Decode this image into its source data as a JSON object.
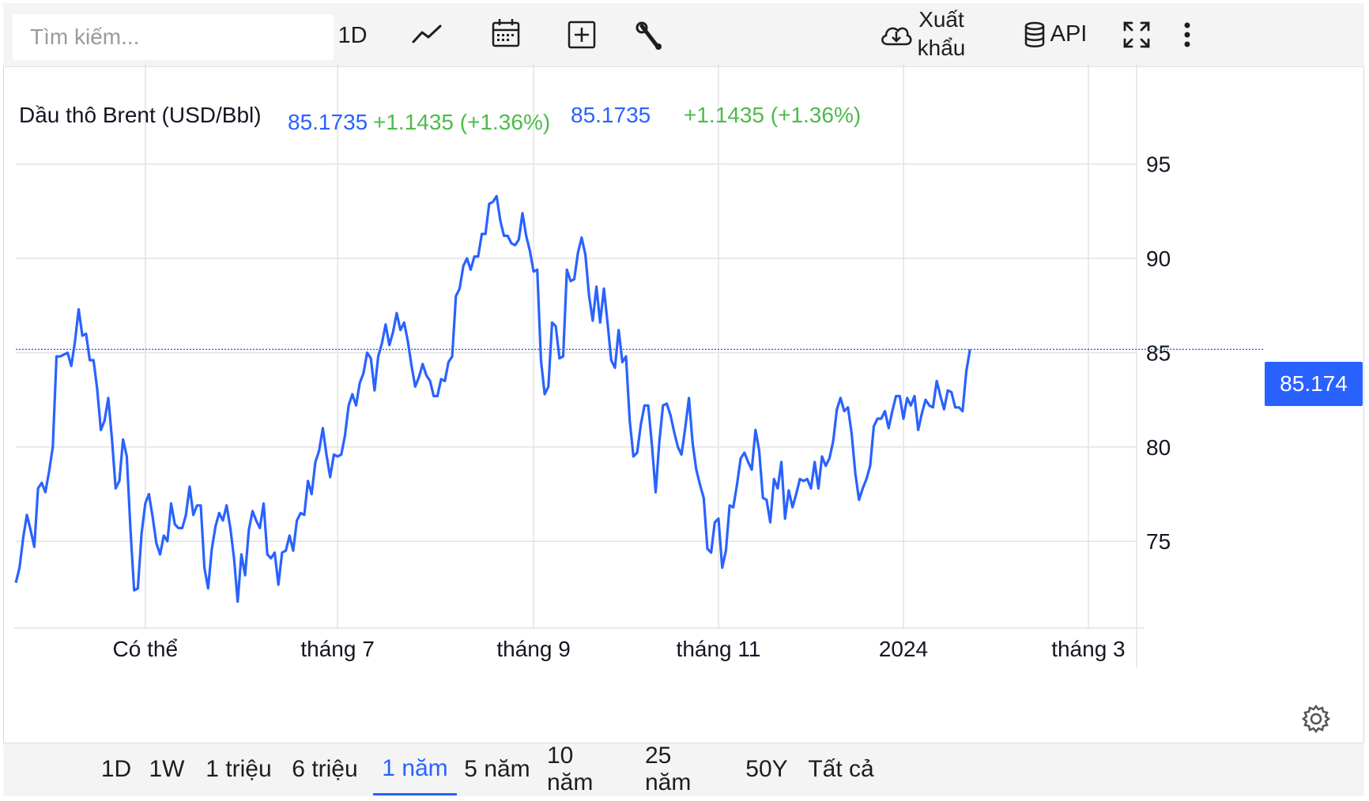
{
  "toolbar": {
    "search_placeholder": "Tìm kiếm...",
    "interval_label": "1D",
    "export_line1": "Xuất",
    "export_line2": "khẩu",
    "api_label": "API",
    "icons": [
      "line-chart-icon",
      "calendar-icon",
      "add-indicator-icon",
      "wrench-icon",
      "cloud-download-icon",
      "database-icon",
      "fullscreen-icon",
      "more-vertical-icon"
    ]
  },
  "legend": {
    "symbol": "Dầu thô Brent (USD/Bbl)",
    "price_a": "85.1735",
    "change_a": "+1.1435 (+1.36%)",
    "price_b": "85.1735",
    "change_b": "+1.1435 (+1.36%)"
  },
  "price_tag": "85.174",
  "colors": {
    "line": "#2962ff",
    "positive": "#4cbb4a",
    "price": "#2962ff"
  },
  "ranges": [
    "1D",
    "1W",
    "1 triệu",
    "6 triệu",
    "1 năm",
    "5 năm",
    "10 năm",
    "25 năm",
    "50Y",
    "Tất cả"
  ],
  "active_range": "1 năm",
  "chart_data": {
    "type": "line",
    "title": "Dầu thô Brent (USD/Bbl)",
    "xlabel": "",
    "ylabel": "",
    "ylim": [
      70.4,
      97
    ],
    "xlim": [
      0,
      296
    ],
    "y_ticks": [
      75,
      80,
      85,
      90,
      95
    ],
    "x_ticks": [
      {
        "label": "Có thể",
        "x": 35
      },
      {
        "label": "tháng 7",
        "x": 87
      },
      {
        "label": "tháng 9",
        "x": 140
      },
      {
        "label": "tháng 11",
        "x": 190
      },
      {
        "label": "2024",
        "x": 240
      },
      {
        "label": "tháng 3",
        "x": 290
      }
    ],
    "last_value": 85.174,
    "grid": true,
    "series": [
      {
        "values": [
          72.8,
          73.6,
          75.2,
          76.4,
          75.6,
          74.7,
          77.8,
          78.1,
          77.6,
          78.7,
          80.0,
          84.8,
          84.8,
          84.9,
          85.0,
          84.3,
          85.6,
          87.3,
          85.9,
          86.0,
          84.6,
          84.6,
          83.1,
          80.9,
          81.4,
          82.6,
          80.4,
          77.8,
          78.2,
          80.4,
          79.5,
          75.6,
          72.4,
          72.5,
          75.4,
          77.0,
          77.5,
          76.3,
          74.9,
          74.3,
          75.3,
          75.0,
          77.0,
          75.9,
          75.7,
          75.7,
          76.4,
          77.9,
          76.4,
          76.9,
          76.9,
          73.6,
          72.5,
          74.6,
          75.8,
          76.5,
          76.1,
          76.9,
          75.7,
          74.1,
          71.8,
          74.3,
          73.2,
          75.6,
          76.6,
          76.1,
          75.7,
          77.0,
          74.3,
          74.1,
          74.4,
          72.7,
          74.4,
          74.5,
          75.3,
          74.5,
          76.1,
          76.5,
          76.4,
          78.2,
          77.5,
          79.2,
          79.8,
          81.0,
          79.6,
          78.4,
          79.6,
          79.5,
          79.6,
          80.6,
          82.2,
          82.8,
          82.2,
          83.4,
          83.9,
          85.0,
          84.7,
          83.0,
          84.8,
          85.5,
          86.5,
          85.4,
          86.1,
          87.1,
          86.2,
          86.6,
          85.6,
          84.3,
          83.2,
          83.7,
          84.4,
          83.8,
          83.5,
          82.7,
          82.7,
          83.6,
          83.5,
          84.5,
          84.8,
          88.0,
          88.4,
          89.6,
          90.0,
          89.4,
          90.1,
          90.1,
          91.3,
          91.3,
          92.9,
          93.0,
          93.3,
          92.0,
          91.2,
          91.2,
          90.8,
          90.7,
          91.0,
          92.4,
          91.2,
          90.4,
          89.3,
          89.4,
          84.6,
          82.8,
          83.2,
          86.6,
          86.4,
          84.7,
          84.8,
          89.4,
          88.8,
          88.9,
          90.3,
          91.1,
          90.2,
          88.0,
          86.7,
          88.5,
          86.6,
          88.4,
          86.6,
          84.6,
          84.2,
          86.2,
          84.5,
          84.8,
          81.4,
          79.5,
          79.7,
          81.2,
          82.2,
          82.2,
          80.1,
          77.6,
          80.3,
          82.2,
          82.3,
          81.7,
          80.8,
          80.0,
          79.6,
          81.0,
          82.6,
          80.2,
          78.8,
          78.0,
          77.3,
          74.6,
          74.4,
          76.0,
          76.2,
          73.6,
          74.5,
          76.9,
          76.8,
          78.0,
          79.4,
          79.7,
          79.2,
          78.8,
          80.9,
          79.8,
          77.3,
          77.2,
          76.0,
          78.3,
          77.8,
          79.2,
          76.2,
          77.7,
          76.8,
          77.5,
          78.3,
          78.2,
          78.3,
          77.8,
          79.2,
          77.8,
          79.5,
          79.0,
          79.4,
          80.3,
          82.0,
          82.6,
          81.9,
          82.1,
          80.7,
          78.6,
          77.2,
          77.8,
          78.3,
          79.0,
          81.1,
          81.5,
          81.5,
          81.9,
          81.0,
          81.9,
          82.7,
          82.7,
          81.5,
          82.6,
          82.2,
          82.7,
          80.9,
          81.8,
          82.5,
          82.2,
          82.1,
          83.5,
          82.7,
          82.0,
          83.0,
          82.9,
          82.1,
          82.1,
          81.9,
          84.0,
          85.174
        ]
      }
    ]
  }
}
